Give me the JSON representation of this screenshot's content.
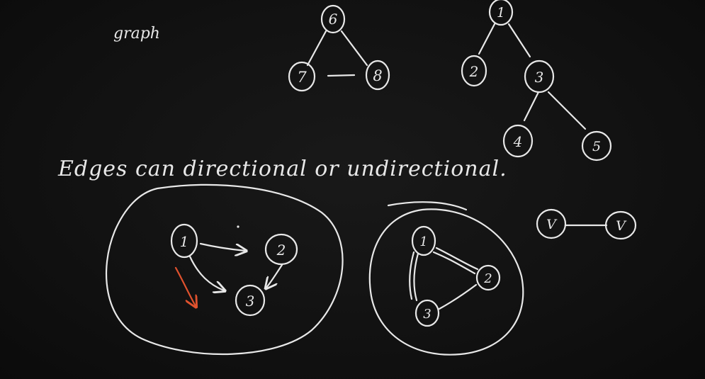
{
  "title_word": "graph",
  "caption_line": "Edges can directional or undirectional.",
  "colors": {
    "background": "#111111",
    "ink": "#e8e8e8",
    "accent": "#e0522e"
  },
  "graph_a": {
    "nodes": [
      "6",
      "7",
      "8"
    ]
  },
  "graph_tree": {
    "nodes": [
      "1",
      "2",
      "3",
      "4",
      "5"
    ]
  },
  "graph_directed": {
    "nodes": [
      "1",
      "2",
      "3"
    ]
  },
  "graph_undirected": {
    "nodes": [
      "1",
      "2",
      "3"
    ]
  },
  "edge_example": {
    "left": "V",
    "right": "V"
  }
}
